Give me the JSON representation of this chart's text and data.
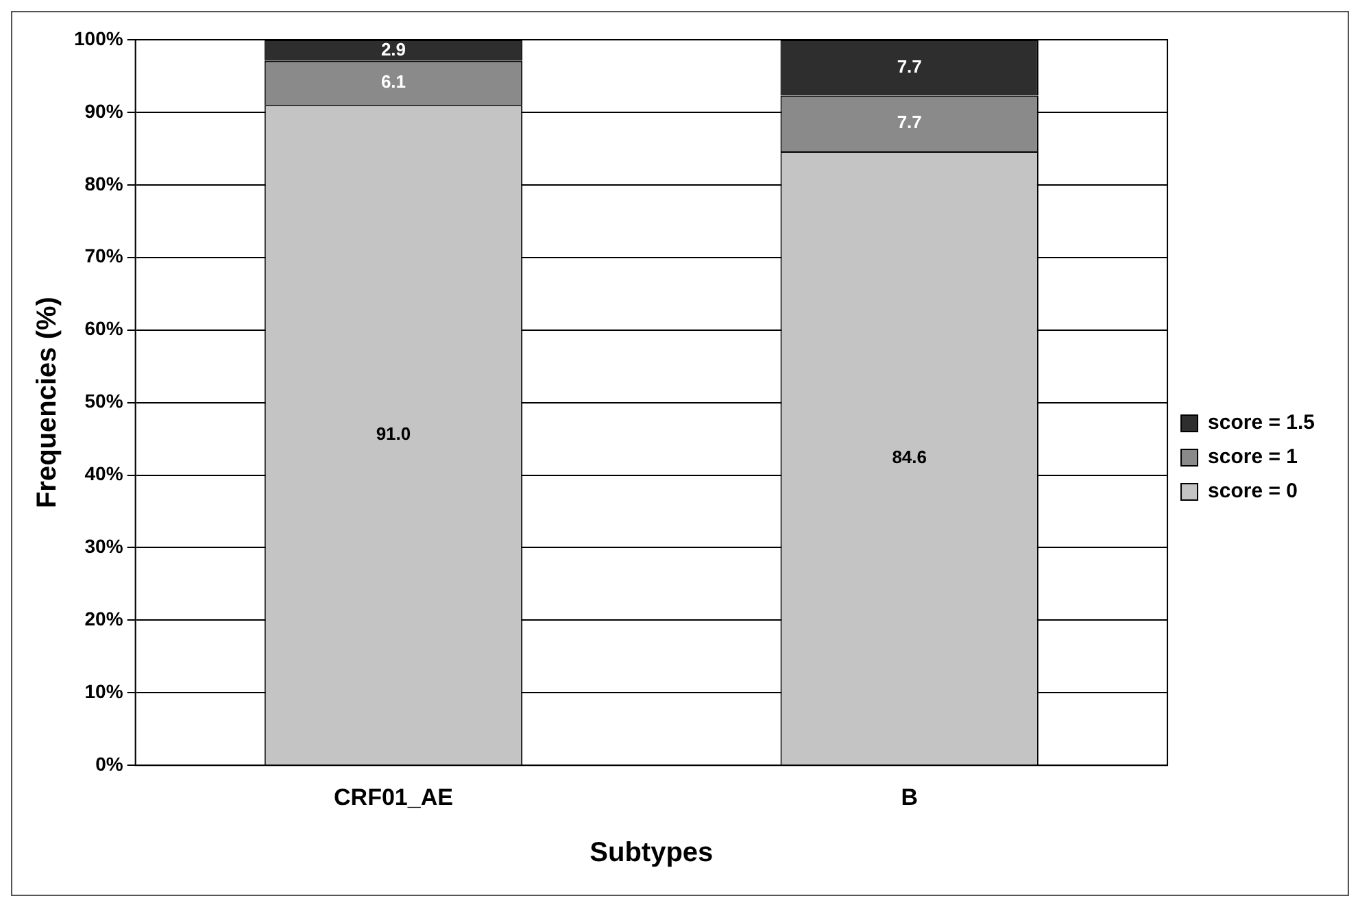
{
  "chart_data": {
    "type": "bar",
    "stacked": true,
    "xlabel": "Subtypes",
    "ylabel": "Frequencies (%)",
    "categories": [
      "CRF01_AE",
      "B"
    ],
    "series": [
      {
        "name": "score = 0",
        "color": "#c4c4c4",
        "values": [
          91.0,
          84.6
        ],
        "value_labels": [
          "91.0",
          "84.6"
        ]
      },
      {
        "name": "score = 1",
        "color": "#8a8a8a",
        "values": [
          6.1,
          7.7
        ],
        "value_labels": [
          "6.1",
          "7.7"
        ]
      },
      {
        "name": "score = 1.5",
        "color": "#2e2e2e",
        "values": [
          2.9,
          7.7
        ],
        "value_labels": [
          "2.9",
          "7.7"
        ]
      }
    ],
    "ylim": [
      0,
      100
    ],
    "yticks": [
      {
        "value": 0,
        "label": "0%"
      },
      {
        "value": 10,
        "label": "10%"
      },
      {
        "value": 20,
        "label": "20%"
      },
      {
        "value": 30,
        "label": "30%"
      },
      {
        "value": 40,
        "label": "40%"
      },
      {
        "value": 50,
        "label": "50%"
      },
      {
        "value": 60,
        "label": "60%"
      },
      {
        "value": 70,
        "label": "70%"
      },
      {
        "value": 80,
        "label": "80%"
      },
      {
        "value": 90,
        "label": "90%"
      },
      {
        "value": 100,
        "label": "100%"
      }
    ],
    "grid": "y",
    "legend": "right"
  }
}
